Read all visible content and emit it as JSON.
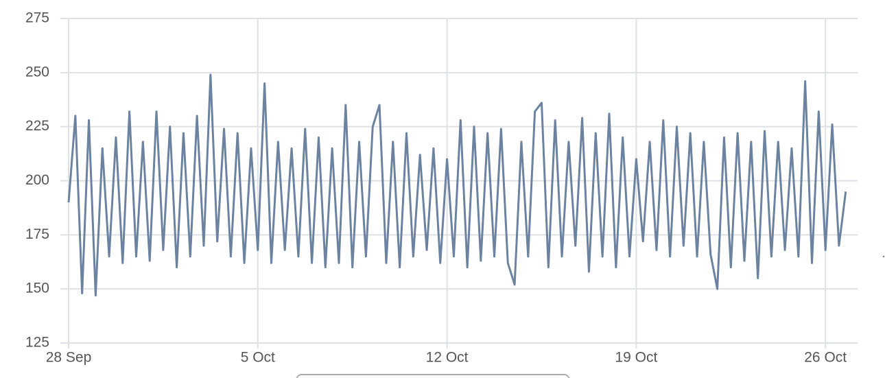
{
  "chart_data": {
    "type": "line",
    "categories": [
      "28 Sep",
      null,
      null,
      null,
      null,
      null,
      null,
      null,
      null,
      null,
      null,
      null,
      null,
      null,
      null,
      null,
      null,
      null,
      null,
      null,
      null,
      null,
      null,
      null,
      null,
      null,
      null,
      null,
      "5 Oct",
      null,
      null,
      null,
      null,
      null,
      null,
      null,
      null,
      null,
      null,
      null,
      null,
      null,
      null,
      null,
      null,
      null,
      null,
      null,
      null,
      null,
      null,
      null,
      null,
      null,
      null,
      null,
      "12 Oct",
      null,
      null,
      null,
      null,
      null,
      null,
      null,
      null,
      null,
      null,
      null,
      null,
      null,
      null,
      null,
      null,
      null,
      null,
      null,
      null,
      null,
      null,
      null,
      null,
      null,
      null,
      null,
      "19 Oct",
      null,
      null,
      null,
      null,
      null,
      null,
      null,
      null,
      null,
      null,
      null,
      null,
      null,
      null,
      null,
      null,
      null,
      null,
      null,
      null,
      null,
      null,
      null,
      null,
      null,
      null,
      null,
      "26 Oct",
      null,
      null,
      null
    ],
    "values": [
      190,
      230,
      148,
      228,
      147,
      215,
      165,
      220,
      162,
      232,
      165,
      218,
      163,
      232,
      168,
      225,
      160,
      222,
      165,
      230,
      170,
      249,
      172,
      224,
      165,
      222,
      162,
      215,
      168,
      245,
      162,
      218,
      168,
      215,
      165,
      224,
      162,
      220,
      160,
      215,
      162,
      235,
      160,
      218,
      165,
      225,
      235,
      162,
      218,
      160,
      222,
      165,
      212,
      168,
      215,
      162,
      210,
      165,
      228,
      160,
      225,
      163,
      222,
      165,
      224,
      162,
      152,
      218,
      165,
      232,
      236,
      160,
      228,
      165,
      218,
      170,
      229,
      158,
      222,
      165,
      231,
      160,
      220,
      165,
      210,
      172,
      218,
      168,
      228,
      165,
      225,
      170,
      222,
      165,
      218,
      166,
      150,
      220,
      160,
      222,
      163,
      218,
      155,
      223,
      165,
      218,
      168,
      215,
      165,
      246,
      162,
      232,
      168,
      226,
      170,
      195
    ],
    "color": "#6b82a0",
    "ylim": [
      125,
      275
    ],
    "yticks": [
      125,
      150,
      175,
      200,
      225,
      250,
      275
    ],
    "grid": true
  }
}
